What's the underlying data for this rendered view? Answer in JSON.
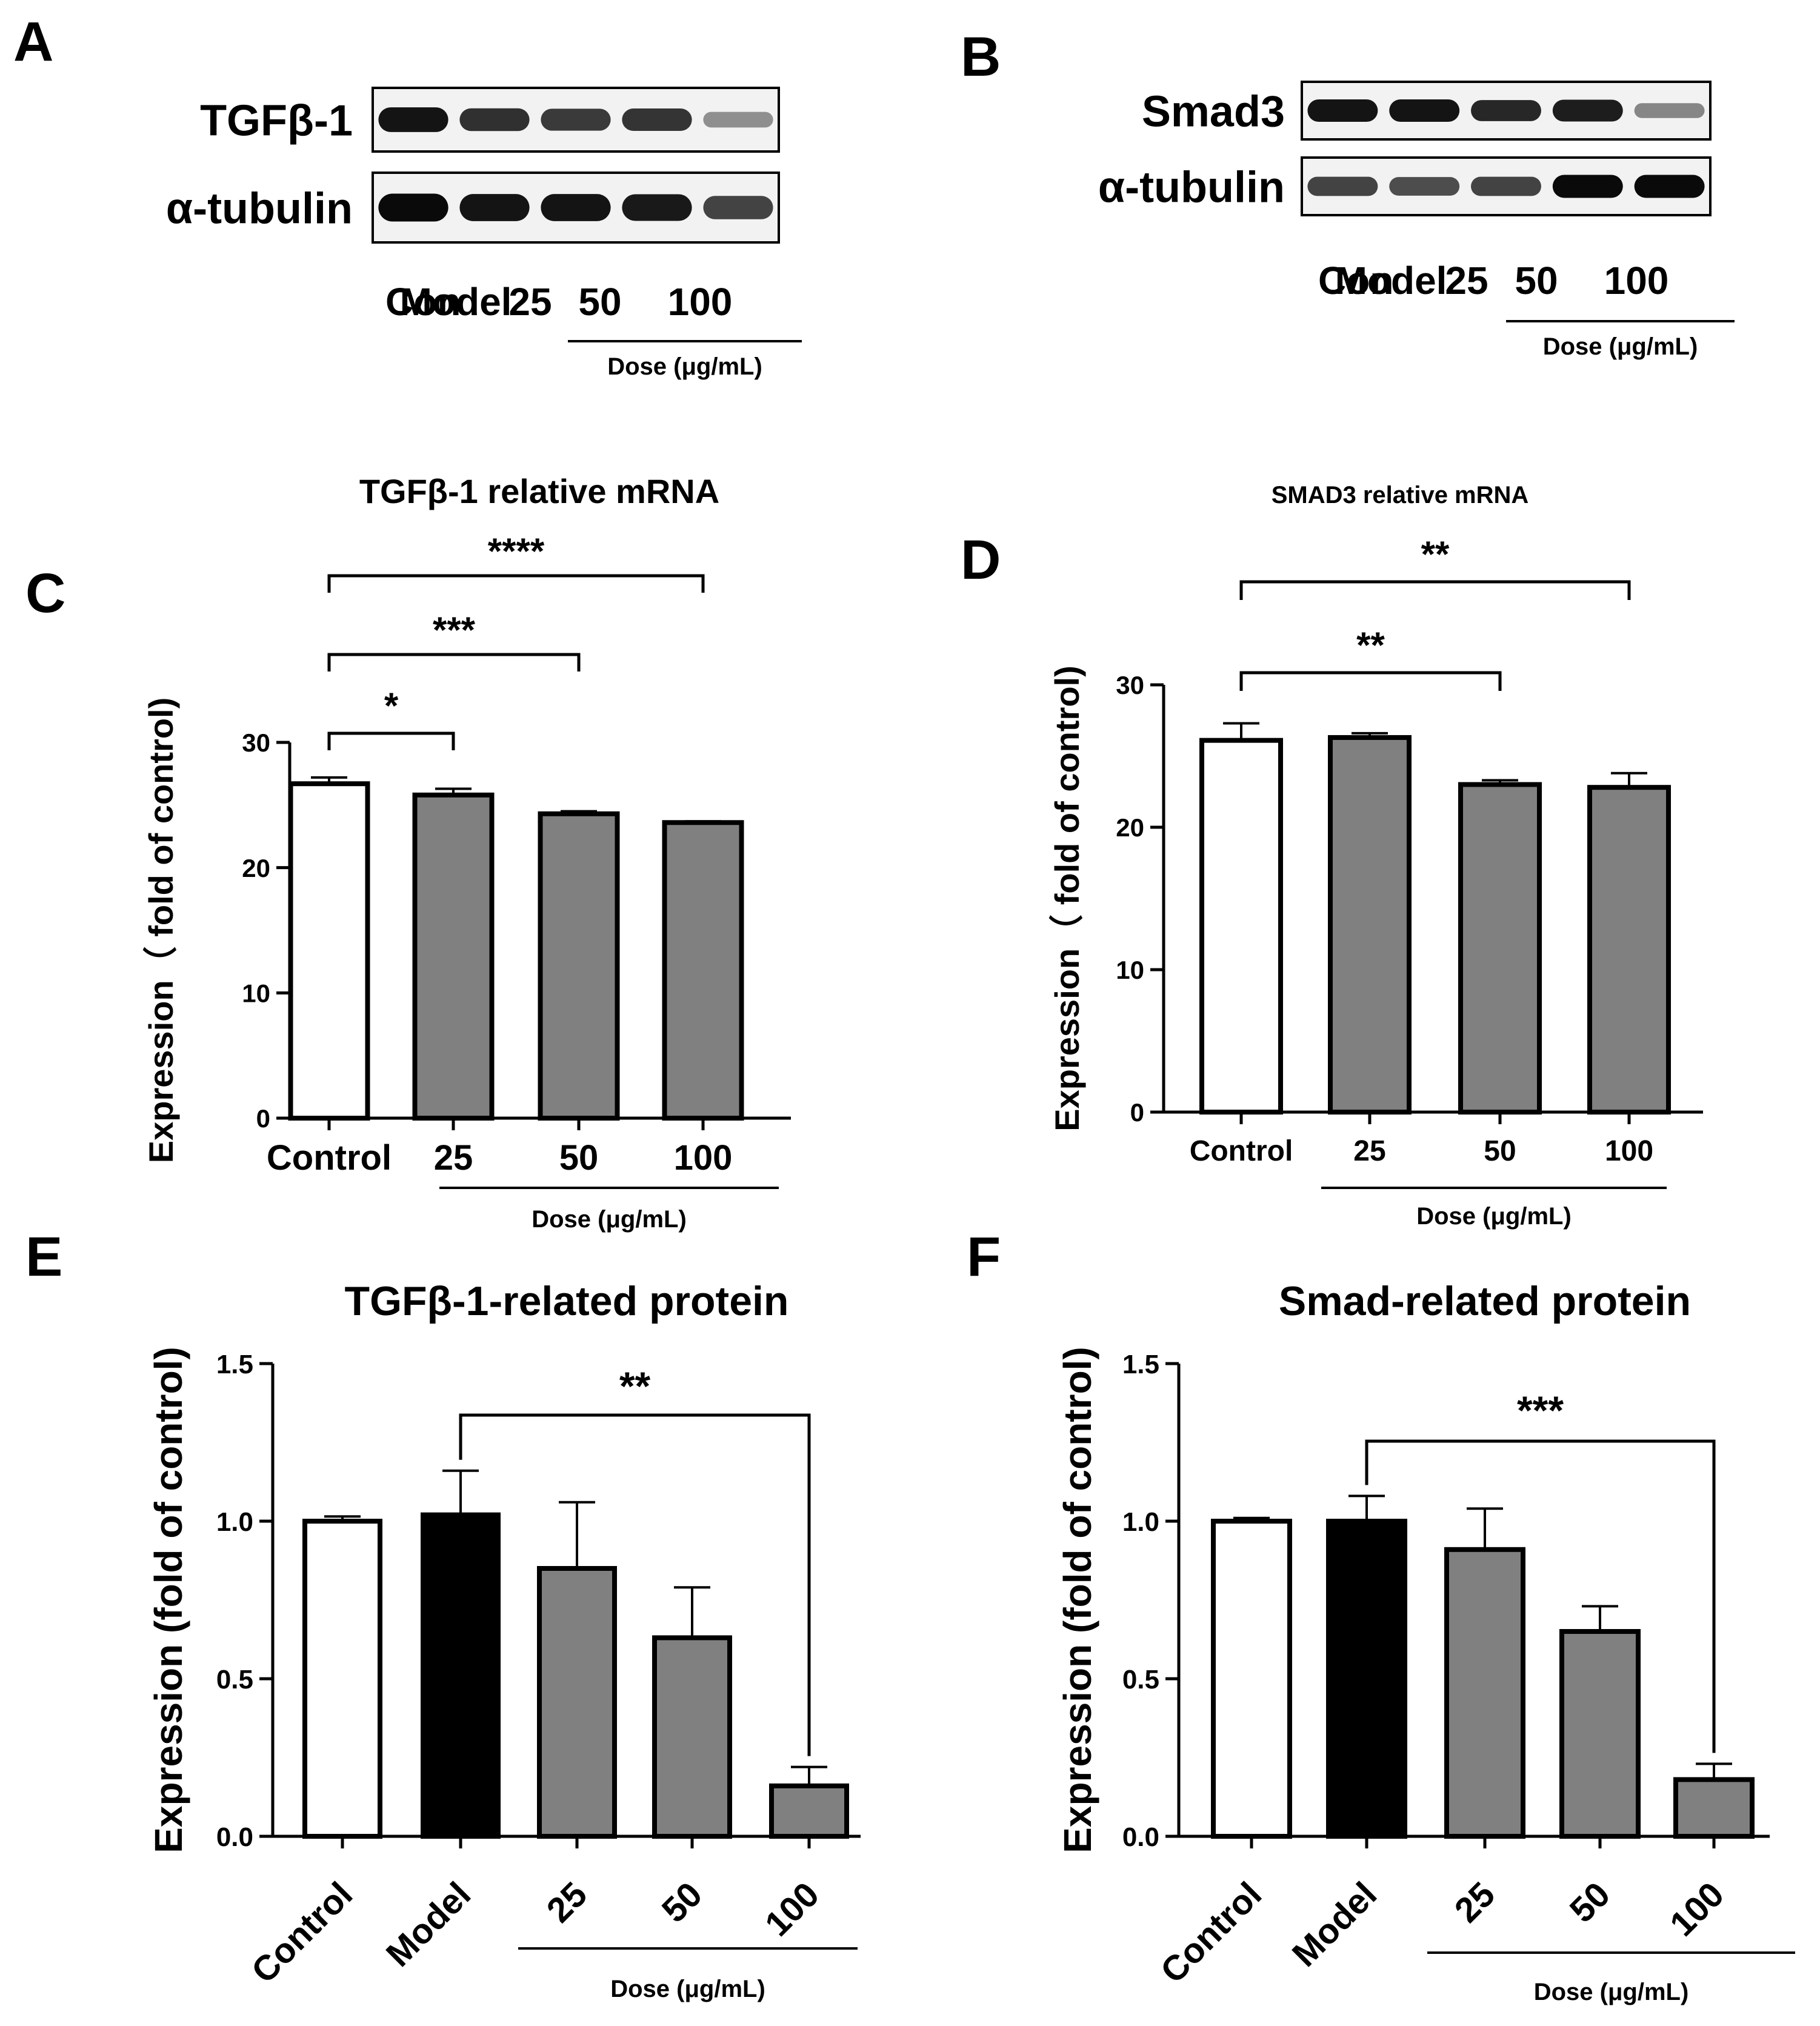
{
  "figure": {
    "bar_colors": {
      "white": "#ffffff",
      "black": "#000000",
      "gray": "#808080"
    }
  },
  "blots": [
    {
      "panel_letter": "A",
      "rows": [
        {
          "label": "TGFβ-1",
          "intensities": [
            0.95,
            0.8,
            0.75,
            0.78,
            0.3
          ]
        },
        {
          "label": "α-tubulin",
          "intensities": [
            1.0,
            0.95,
            0.95,
            0.92,
            0.7
          ]
        }
      ],
      "lanes": [
        "Con",
        "Model",
        "25",
        "50",
        "100"
      ],
      "dose_label": "Dose (μg/mL)"
    },
    {
      "panel_letter": "B",
      "rows": [
        {
          "label": "Smad3",
          "intensities": [
            0.95,
            0.95,
            0.85,
            0.9,
            0.35
          ]
        },
        {
          "label": "α-tubulin",
          "intensities": [
            0.7,
            0.65,
            0.7,
            1.0,
            1.0
          ]
        }
      ],
      "lanes": [
        "Con",
        "Model",
        "25",
        "50",
        "100"
      ],
      "dose_label": "Dose (μg/mL)"
    }
  ],
  "chart_data": [
    {
      "panel_letter": "C",
      "type": "bar",
      "title": "TGFβ-1 relative mRNA",
      "ylabel": "Expression（ fold of control)",
      "xlabel": "Dose (μg/mL)",
      "categories": [
        "Control",
        "25",
        "50",
        "100"
      ],
      "values": [
        26.7,
        25.8,
        24.3,
        23.6
      ],
      "errors": [
        0.5,
        0.5,
        0.2,
        0.1
      ],
      "bar_styles": [
        "white",
        "gray",
        "gray",
        "gray"
      ],
      "ylim": [
        0,
        30
      ],
      "yticks": [
        "0",
        "10",
        "20",
        "30"
      ],
      "significance": [
        {
          "from": 0,
          "to": 1,
          "label": "*"
        },
        {
          "from": 0,
          "to": 2,
          "label": "***"
        },
        {
          "from": 0,
          "to": 3,
          "label": "****"
        }
      ]
    },
    {
      "panel_letter": "D",
      "type": "bar",
      "title": "SMAD3 relative mRNA",
      "ylabel": "Expression（ fold of control)",
      "xlabel": "Dose (μg/mL)",
      "categories": [
        "Control",
        "25",
        "50",
        "100"
      ],
      "values": [
        26.1,
        26.3,
        23.0,
        22.8
      ],
      "errors": [
        1.2,
        0.3,
        0.3,
        1.0
      ],
      "bar_styles": [
        "white",
        "gray",
        "gray",
        "gray"
      ],
      "ylim": [
        0,
        30
      ],
      "yticks": [
        "0",
        "10",
        "20",
        "30"
      ],
      "significance": [
        {
          "from": 0,
          "to": 2,
          "label": "**"
        },
        {
          "from": 0,
          "to": 3,
          "label": "**"
        }
      ]
    },
    {
      "panel_letter": "E",
      "type": "bar",
      "title": "TGFβ-1-related protein",
      "ylabel": "Expression (fold of control)",
      "xlabel": "Dose (μg/mL)",
      "categories": [
        "Control",
        "Model",
        "25",
        "50",
        "100"
      ],
      "values": [
        1.0,
        1.02,
        0.85,
        0.63,
        0.16
      ],
      "errors": [
        0.015,
        0.14,
        0.21,
        0.16,
        0.06
      ],
      "bar_styles": [
        "white",
        "black",
        "gray",
        "gray",
        "gray"
      ],
      "ylim": [
        0,
        1.5
      ],
      "yticks": [
        "0.0",
        "0.5",
        "1.0",
        "1.5"
      ],
      "significance": [
        {
          "from": 1,
          "to": 4,
          "label": "**"
        }
      ]
    },
    {
      "panel_letter": "F",
      "type": "bar",
      "title": "Smad-related protein",
      "ylabel": "Expression (fold of control)",
      "xlabel": "Dose (μg/mL)",
      "categories": [
        "Control",
        "Model",
        "25",
        "50",
        "100"
      ],
      "values": [
        1.0,
        1.0,
        0.91,
        0.65,
        0.18
      ],
      "errors": [
        0.01,
        0.08,
        0.13,
        0.08,
        0.05
      ],
      "bar_styles": [
        "white",
        "black",
        "gray",
        "gray",
        "gray"
      ],
      "ylim": [
        0,
        1.5
      ],
      "yticks": [
        "0.0",
        "0.5",
        "1.0",
        "1.5"
      ],
      "significance": [
        {
          "from": 1,
          "to": 4,
          "label": "***"
        }
      ]
    }
  ]
}
